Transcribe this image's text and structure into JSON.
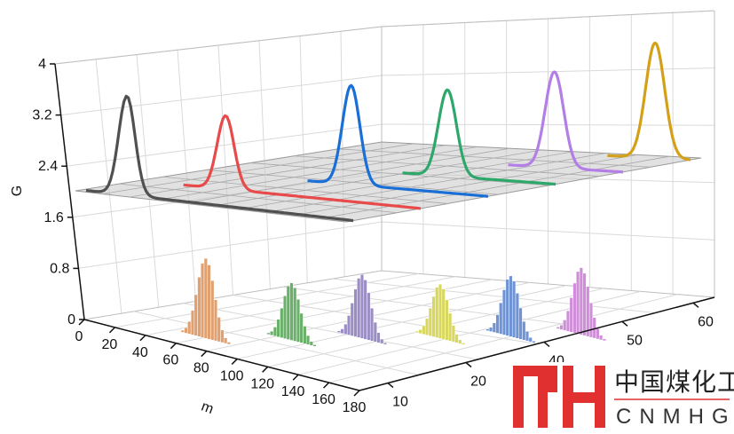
{
  "chart_data": {
    "type": "3d-waterfall",
    "ylabel": "G",
    "xlabel": "m",
    "zlim": [
      0,
      4
    ],
    "z_ticks": [
      "0",
      "0.8",
      "1.6",
      "2.4",
      "3.2",
      "4"
    ],
    "x_ticks": [
      "0",
      "20",
      "40",
      "60",
      "80",
      "100",
      "120",
      "140",
      "160",
      "180"
    ],
    "depth_ticks": [
      "10",
      "20",
      "40",
      "50",
      "60"
    ],
    "grid": true,
    "curve_series": [
      {
        "color": "#505050",
        "peak_x": 30,
        "peak_value": 3.55,
        "baseline": 2.0
      },
      {
        "color": "#e84a4a",
        "peak_x": 55,
        "peak_value": 3.15,
        "baseline": 2.0
      },
      {
        "color": "#1a6fd6",
        "peak_x": 95,
        "peak_value": 3.55,
        "baseline": 2.0
      },
      {
        "color": "#2ea86a",
        "peak_x": 115,
        "peak_value": 3.35,
        "baseline": 2.0
      },
      {
        "color": "#b37ee6",
        "peak_x": 140,
        "peak_value": 3.5,
        "baseline": 2.0
      },
      {
        "color": "#d4a017",
        "peak_x": 160,
        "peak_value": 3.8,
        "baseline": 2.0
      }
    ],
    "bar_series": [
      {
        "color": "#e0a070",
        "peak_x": 60,
        "peak_value": 1.25
      },
      {
        "color": "#6ab06a",
        "peak_x": 85,
        "peak_value": 0.9
      },
      {
        "color": "#9b8ec4",
        "peak_x": 100,
        "peak_value": 1.0
      },
      {
        "color": "#d8d860",
        "peak_x": 120,
        "peak_value": 0.85
      },
      {
        "color": "#6f93d4",
        "peak_x": 135,
        "peak_value": 0.95
      },
      {
        "color": "#cf8ed8",
        "peak_x": 150,
        "peak_value": 1.05
      }
    ]
  },
  "logo": {
    "cn_text": "中国煤化工",
    "en_text": "CNMHG",
    "mark_color": "#e03030"
  }
}
